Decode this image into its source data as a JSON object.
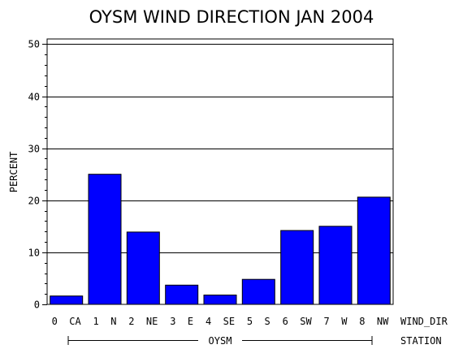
{
  "chart_data": {
    "type": "bar",
    "title": "OYSM WIND DIRECTION JAN 2004",
    "ylabel": "PERCENT",
    "xlabel": "WIND_DIR",
    "group_axis_label": "STATION",
    "group_label": "OYSM",
    "categories": [
      "0 CA",
      "1 N",
      "2 NE",
      "3 E",
      "4 SE",
      "5 S",
      "6 SW",
      "7 W",
      "8 NW"
    ],
    "values": [
      1.6,
      25.0,
      13.9,
      3.7,
      1.8,
      4.8,
      14.2,
      15.0,
      20.6
    ],
    "ylim": [
      0,
      51
    ],
    "yticks": [
      0,
      10,
      20,
      30,
      40,
      50
    ],
    "grid": true,
    "bar_color": "#0000ff"
  }
}
